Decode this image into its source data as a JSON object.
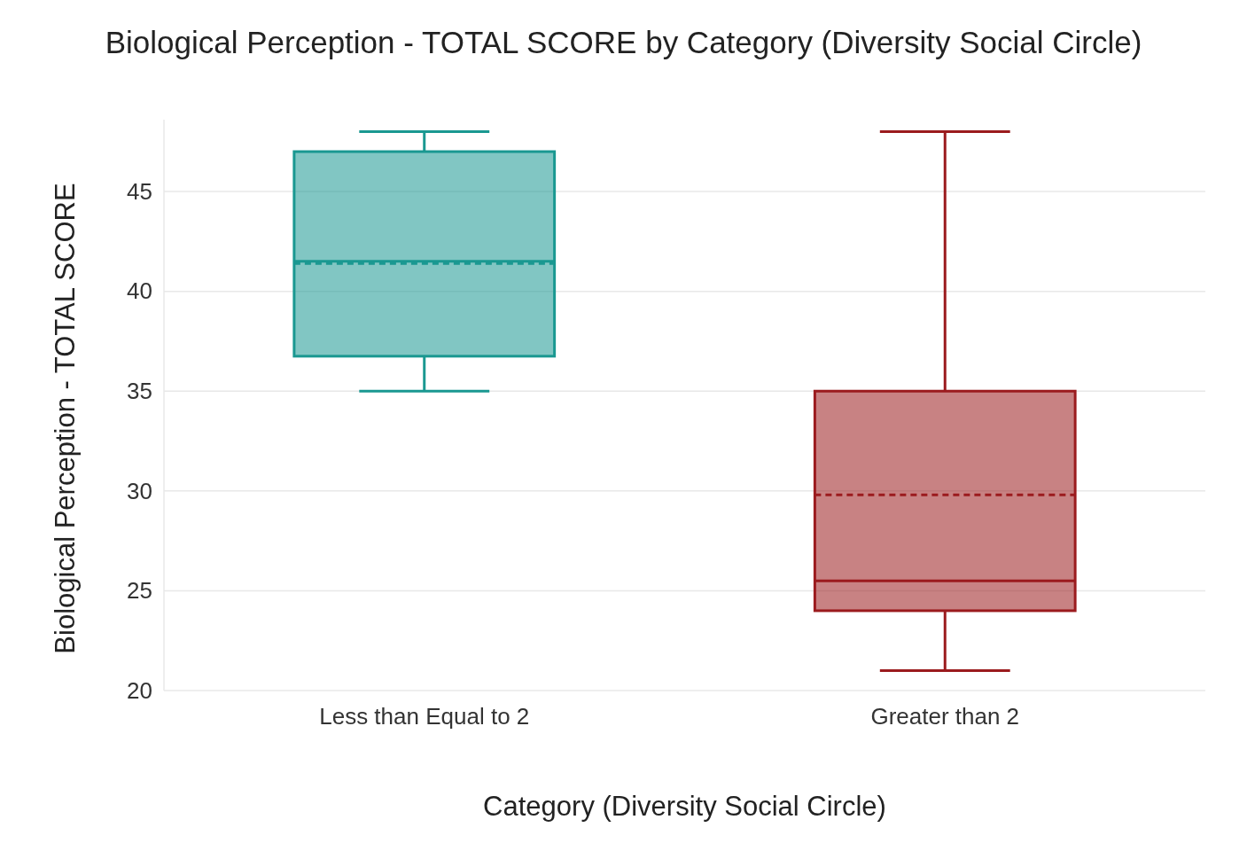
{
  "chart_data": {
    "type": "box",
    "title": "Biological Perception - TOTAL SCORE by Category (Diversity Social Circle)",
    "xlabel": "Category (Diversity Social Circle)",
    "ylabel": "Biological Perception - TOTAL SCORE",
    "categories": [
      "Less than Equal to 2",
      "Greater than 2"
    ],
    "boxes": [
      {
        "low": 35,
        "q1": 36.75,
        "median": 41.5,
        "q3": 47,
        "high": 48,
        "mean": 41.4
      },
      {
        "low": 21,
        "q1": 24,
        "median": 25.5,
        "q3": 35,
        "high": 48,
        "mean": 29.8
      }
    ],
    "colors": [
      "#1a9891",
      "#9b1b1e"
    ],
    "ylim": [
      20,
      48.6
    ],
    "yticks": [
      20,
      25,
      30,
      35,
      40,
      45
    ],
    "grid": "y"
  }
}
